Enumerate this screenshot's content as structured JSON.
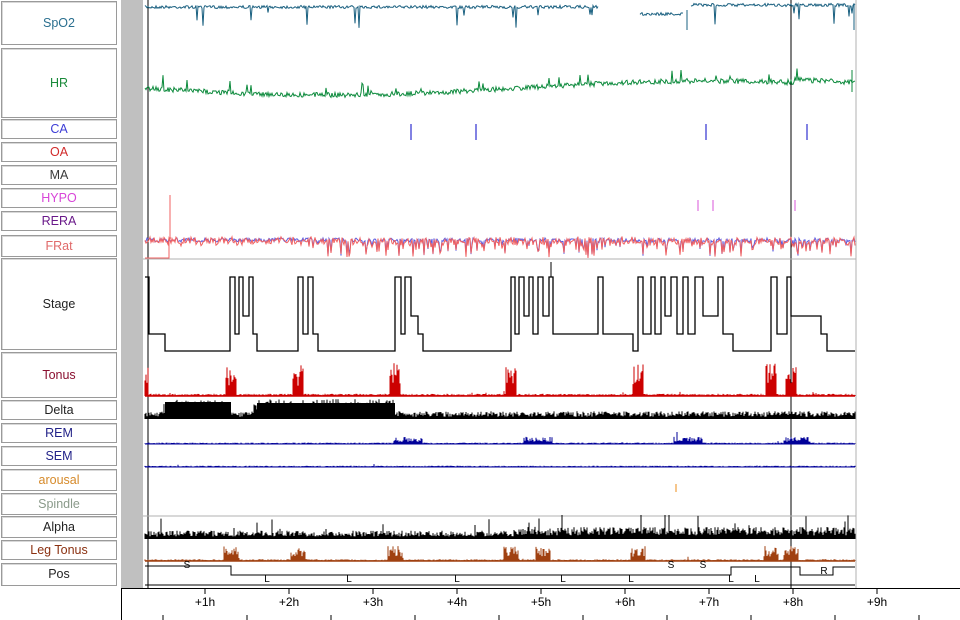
{
  "channels": [
    {
      "id": "spo2",
      "label": "SpO2",
      "color": "#2a6f8f"
    },
    {
      "id": "hr",
      "label": "HR",
      "color": "#1a8a3a"
    },
    {
      "id": "ca",
      "label": "CA",
      "color": "#3d3dd6"
    },
    {
      "id": "oa",
      "label": "OA",
      "color": "#d12a2a"
    },
    {
      "id": "ma",
      "label": "MA",
      "color": "#3a3a3a"
    },
    {
      "id": "hypo",
      "label": "HYPO",
      "color": "#d845d8"
    },
    {
      "id": "rera",
      "label": "RERA",
      "color": "#6a1a8a"
    },
    {
      "id": "frat",
      "label": "FRat",
      "color": "#e06a6a"
    },
    {
      "id": "stage",
      "label": "Stage",
      "color": "#222222"
    },
    {
      "id": "tonus",
      "label": "Tonus",
      "color": "#8a1030"
    },
    {
      "id": "delta",
      "label": "Delta",
      "color": "#222222"
    },
    {
      "id": "rem",
      "label": "REM",
      "color": "#222288"
    },
    {
      "id": "sem",
      "label": "SEM",
      "color": "#222288"
    },
    {
      "id": "arousal",
      "label": "arousal",
      "color": "#d68a2a"
    },
    {
      "id": "spindle",
      "label": "Spindle",
      "color": "#8a9a8a"
    },
    {
      "id": "alpha",
      "label": "Alpha",
      "color": "#222222"
    },
    {
      "id": "legtonus",
      "label": "Leg Tonus",
      "color": "#8a3010"
    },
    {
      "id": "pos",
      "label": "Pos",
      "color": "#222222"
    }
  ],
  "time_axis": {
    "ticks": [
      "+1h",
      "+2h",
      "+3h",
      "+4h",
      "+5h",
      "+6h",
      "+7h",
      "+8h",
      "+9h"
    ]
  },
  "position_labels": [
    "S",
    "L",
    "L",
    "L",
    "L",
    "L",
    "S",
    "S",
    "L",
    "L",
    "R"
  ],
  "colors": {
    "trace_spo2": "#1a6080",
    "trace_hr": "#0c8a3c",
    "trace_ca": "#3030d0",
    "trace_hypo": "#e070e0",
    "trace_frat_red": "#f06060",
    "trace_frat_blue": "#5a5ae0",
    "trace_tonus": "#cc0000",
    "trace_delta": "#000000",
    "trace_rem": "#000099",
    "trace_alpha": "#000000",
    "trace_leg": "#a04010",
    "trace_arousal": "#f0a040",
    "gutter": "#c0c0c0"
  }
}
